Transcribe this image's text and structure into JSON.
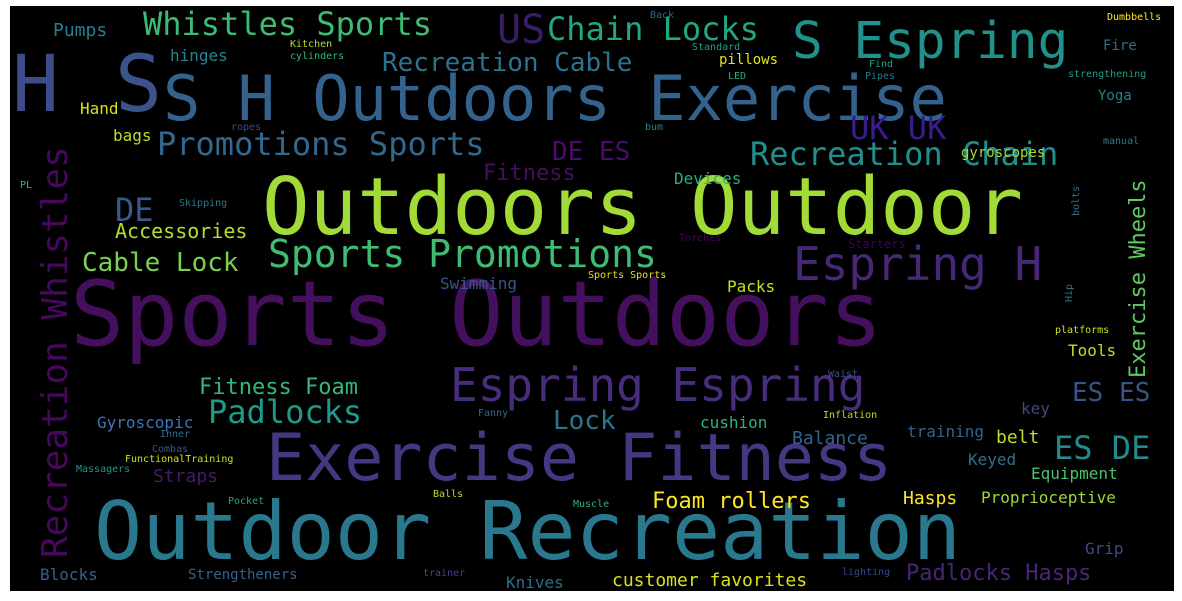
{
  "cloud": {
    "background": "#000000",
    "colormap": "viridis",
    "words": [
      {
        "text": "Sports Outdoors",
        "color": "#440f5c"
      },
      {
        "text": "Outdoors Outdoor",
        "color": "#a2da37"
      },
      {
        "text": "Outdoor Recreation",
        "color": "#2a788e"
      },
      {
        "text": "Exercise Fitness",
        "color": "#453781"
      },
      {
        "text": "S H Outdoors Exercise",
        "color": "#33638d"
      },
      {
        "text": "H",
        "color": "#3e4c8a"
      },
      {
        "text": "S",
        "color": "#3b528b"
      },
      {
        "text": "S Espring",
        "color": "#21918c"
      },
      {
        "text": "Espring Espring",
        "color": "#472d7b"
      },
      {
        "text": "Espring H",
        "color": "#482777"
      },
      {
        "text": "Recreation Whistles",
        "color": "#46085c"
      },
      {
        "text": "Whistles Sports",
        "color": "#3cbb75"
      },
      {
        "text": "US",
        "color": "#3b1c68"
      },
      {
        "text": "Chain Locks",
        "color": "#22a785"
      },
      {
        "text": "Recreation Cable",
        "color": "#2c728e"
      },
      {
        "text": "Promotions Sports",
        "color": "#31688e"
      },
      {
        "text": "Recreation Chain",
        "color": "#21908d"
      },
      {
        "text": "Sports Promotions",
        "color": "#3fbc73"
      },
      {
        "text": "Padlocks",
        "color": "#1f9a8a"
      },
      {
        "text": "Exercise Wheels",
        "color": "#5ec962"
      },
      {
        "text": "UK UK",
        "color": "#3b1c8c"
      },
      {
        "text": "DE ES",
        "color": "#4b0c6b"
      },
      {
        "text": "DE",
        "color": "#38598c"
      },
      {
        "text": "ES DE",
        "color": "#238a8d"
      },
      {
        "text": "ES ES",
        "color": "#3b528b"
      },
      {
        "text": "Cable Lock",
        "color": "#7ad151"
      },
      {
        "text": "Fitness Foam",
        "color": "#35b779"
      },
      {
        "text": "Lock",
        "color": "#2b758e"
      },
      {
        "text": "Accessories",
        "color": "#b5de2b"
      },
      {
        "text": "Fitness",
        "color": "#440f5c"
      },
      {
        "text": "Foam rollers",
        "color": "#fde725"
      },
      {
        "text": "Padlocks Hasps",
        "color": "#482677"
      },
      {
        "text": "customer favorites",
        "color": "#d8e219"
      },
      {
        "text": "Pumps",
        "color": "#287d8e"
      },
      {
        "text": "hinges",
        "color": "#25848e"
      },
      {
        "text": "Hand",
        "color": "#d2e21b"
      },
      {
        "text": "bags",
        "color": "#bddf26"
      },
      {
        "text": "Devices",
        "color": "#29af7f"
      },
      {
        "text": "Swimming",
        "color": "#39558c"
      },
      {
        "text": "Packs",
        "color": "#c8e020"
      },
      {
        "text": "Gyroscopic",
        "color": "#3e74b8"
      },
      {
        "text": "Balance",
        "color": "#32648e"
      },
      {
        "text": "cushion",
        "color": "#2db27d"
      },
      {
        "text": "key",
        "color": "#3f4889"
      },
      {
        "text": "belt",
        "color": "#b8de29"
      },
      {
        "text": "training",
        "color": "#33638d"
      },
      {
        "text": "Keyed",
        "color": "#2c738e"
      },
      {
        "text": "Equipment",
        "color": "#4ac16d"
      },
      {
        "text": "Straps",
        "color": "#48186a"
      },
      {
        "text": "Hasps",
        "color": "#fde725"
      },
      {
        "text": "Proprioceptive",
        "color": "#9bd93c"
      },
      {
        "text": "Grip",
        "color": "#3d4d8a"
      },
      {
        "text": "Blocks",
        "color": "#34608d"
      },
      {
        "text": "Strengtheners",
        "color": "#33628d"
      },
      {
        "text": "Knives",
        "color": "#2d708e"
      },
      {
        "text": "Tools",
        "color": "#bddf26"
      },
      {
        "text": "Yoga",
        "color": "#287d8e"
      },
      {
        "text": "Fire",
        "color": "#2d708e"
      },
      {
        "text": "pillows",
        "color": "#e2e418"
      },
      {
        "text": "gyroscopes",
        "color": "#a5db36"
      },
      {
        "text": "Skipping",
        "color": "#2a788e"
      },
      {
        "text": "FunctionalTraining",
        "color": "#d0e11c"
      },
      {
        "text": "Kitchen",
        "color": "#b5de2b"
      },
      {
        "text": "cylinders",
        "color": "#35b779"
      },
      {
        "text": "Standard",
        "color": "#1fa187"
      },
      {
        "text": "Find",
        "color": "#1fa187"
      },
      {
        "text": "Back",
        "color": "#31668e"
      },
      {
        "text": "Dumbbells",
        "color": "#fde725"
      },
      {
        "text": "strengthening",
        "color": "#1f9e89"
      },
      {
        "text": "LED",
        "color": "#29af7f"
      },
      {
        "text": "Pipes",
        "color": "#2a788e"
      },
      {
        "text": "ropes",
        "color": "#3e4989"
      },
      {
        "text": "bum",
        "color": "#26828e"
      },
      {
        "text": "manual",
        "color": "#2a788e"
      },
      {
        "text": "bolts",
        "color": "#2c728e"
      },
      {
        "text": "PL",
        "color": "#35b779"
      },
      {
        "text": "Torches",
        "color": "#46075a"
      },
      {
        "text": "Starters",
        "color": "#440154"
      },
      {
        "text": "Sports Sports",
        "color": "#e5e419"
      },
      {
        "text": "Hip",
        "color": "#2a788e"
      },
      {
        "text": "platforms",
        "color": "#d0e11c"
      },
      {
        "text": "Waist",
        "color": "#3b528b"
      },
      {
        "text": "Fanny",
        "color": "#31688e"
      },
      {
        "text": "Inflation",
        "color": "#b8de29"
      },
      {
        "text": "Inner",
        "color": "#2c718e"
      },
      {
        "text": "Combas",
        "color": "#38598c"
      },
      {
        "text": "Massagers",
        "color": "#1f968b"
      },
      {
        "text": "Pocket",
        "color": "#22a884"
      },
      {
        "text": "Balls",
        "color": "#b5de2b"
      },
      {
        "text": "Muscle",
        "color": "#2db27d"
      },
      {
        "text": "trainer",
        "color": "#3f4889"
      },
      {
        "text": "lighting",
        "color": "#3e4a89"
      }
    ]
  }
}
